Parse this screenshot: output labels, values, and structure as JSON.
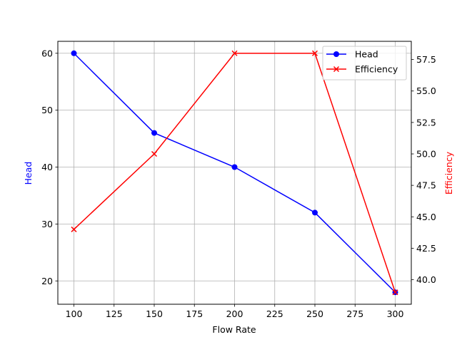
{
  "chart_data": {
    "type": "line",
    "title": "",
    "xlabel": "Flow Rate",
    "ylabel_left": "Head",
    "ylabel_right": "Efficiency",
    "x": [
      100,
      150,
      200,
      250,
      300
    ],
    "series": [
      {
        "name": "Head",
        "axis": "left",
        "color": "#0000ff",
        "marker": "o",
        "values": [
          60,
          46,
          40,
          32,
          18
        ]
      },
      {
        "name": "Efficiency",
        "axis": "right",
        "color": "#ff0000",
        "marker": "x",
        "values": [
          44,
          50,
          58,
          58,
          39
        ]
      }
    ],
    "xticks": [
      "100",
      "125",
      "150",
      "175",
      "200",
      "225",
      "250",
      "275",
      "300"
    ],
    "yticks_left": [
      "20",
      "30",
      "40",
      "50",
      "60"
    ],
    "yticks_right": [
      "40.0",
      "42.5",
      "45.0",
      "47.5",
      "50.0",
      "52.5",
      "55.0",
      "57.5"
    ],
    "xlim": [
      90,
      310
    ],
    "ylim_left": [
      15.9,
      62.1
    ],
    "ylim_right": [
      38.05,
      58.95
    ],
    "grid": true,
    "legend_position": "upper right"
  },
  "legend": {
    "head_label": "Head",
    "efficiency_label": "Efficiency"
  },
  "axes": {
    "xlabel": "Flow Rate",
    "ylabel_left": "Head",
    "ylabel_right": "Efficiency",
    "left_color": "#0000ff",
    "right_color": "#ff0000"
  }
}
